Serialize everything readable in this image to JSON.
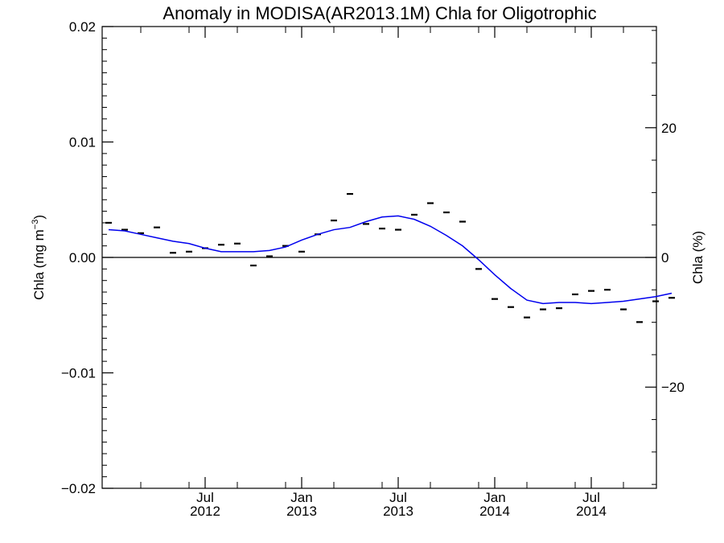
{
  "chart_data": {
    "type": "line",
    "title": "Anomaly in MODISA(AR2013.1M) Chla for Oligotrophic",
    "ylabel_left_base": "Chla (mg m",
    "ylabel_left_sup": "−3",
    "ylabel_left_close": ")",
    "ylabel_right": "Chla (%)",
    "xlim": [
      "2012-01",
      "2014-12"
    ],
    "ylim": [
      -0.02,
      0.02
    ],
    "y2lim": [
      -35.6,
      35.6
    ],
    "grid": false,
    "colors": {
      "axes": "#000000",
      "markers": "#000000",
      "smoothed_line": "#0000ee",
      "zero_line": "#000000"
    },
    "x_ticks": [
      {
        "month": "2012-07",
        "top": "Jul",
        "bottom": "2012"
      },
      {
        "month": "2013-01",
        "top": "Jan",
        "bottom": "2013"
      },
      {
        "month": "2013-07",
        "top": "Jul",
        "bottom": "2013"
      },
      {
        "month": "2014-01",
        "top": "Jan",
        "bottom": "2014"
      },
      {
        "month": "2014-07",
        "top": "Jul",
        "bottom": "2014"
      }
    ],
    "y_ticks_left": [
      {
        "value": 0.02,
        "label": "0.02"
      },
      {
        "value": 0.01,
        "label": "0.01"
      },
      {
        "value": 0.0,
        "label": "0.00"
      },
      {
        "value": -0.01,
        "label": "−0.01"
      },
      {
        "value": -0.02,
        "label": "−0.02"
      }
    ],
    "y_ticks_right": [
      {
        "value": 20,
        "label": "20"
      },
      {
        "value": 0,
        "label": "0"
      },
      {
        "value": -20,
        "label": "−20"
      }
    ],
    "series": [
      {
        "style": "marker",
        "points": [
          {
            "x": "2012-01",
            "y": 0.003
          },
          {
            "x": "2012-02",
            "y": 0.0024
          },
          {
            "x": "2012-03",
            "y": 0.0021
          },
          {
            "x": "2012-04",
            "y": 0.0026
          },
          {
            "x": "2012-05",
            "y": 0.0004
          },
          {
            "x": "2012-06",
            "y": 0.0005
          },
          {
            "x": "2012-07",
            "y": 0.0008
          },
          {
            "x": "2012-08",
            "y": 0.0011
          },
          {
            "x": "2012-09",
            "y": 0.0012
          },
          {
            "x": "2012-10",
            "y": -0.0007
          },
          {
            "x": "2012-11",
            "y": 0.0001
          },
          {
            "x": "2012-12",
            "y": 0.001
          },
          {
            "x": "2013-01",
            "y": 0.0005
          },
          {
            "x": "2013-02",
            "y": 0.002
          },
          {
            "x": "2013-03",
            "y": 0.0032
          },
          {
            "x": "2013-04",
            "y": 0.0055
          },
          {
            "x": "2013-05",
            "y": 0.0029
          },
          {
            "x": "2013-06",
            "y": 0.0025
          },
          {
            "x": "2013-07",
            "y": 0.0024
          },
          {
            "x": "2013-08",
            "y": 0.0037
          },
          {
            "x": "2013-09",
            "y": 0.0047
          },
          {
            "x": "2013-10",
            "y": 0.0039
          },
          {
            "x": "2013-11",
            "y": 0.0031
          },
          {
            "x": "2013-12",
            "y": -0.001
          },
          {
            "x": "2014-01",
            "y": -0.0036
          },
          {
            "x": "2014-02",
            "y": -0.0043
          },
          {
            "x": "2014-03",
            "y": -0.0052
          },
          {
            "x": "2014-04",
            "y": -0.0045
          },
          {
            "x": "2014-05",
            "y": -0.0044
          },
          {
            "x": "2014-06",
            "y": -0.0032
          },
          {
            "x": "2014-07",
            "y": -0.0029
          },
          {
            "x": "2014-08",
            "y": -0.0028
          },
          {
            "x": "2014-09",
            "y": -0.0045
          },
          {
            "x": "2014-10",
            "y": -0.0056
          },
          {
            "x": "2014-11",
            "y": -0.0038
          },
          {
            "x": "2014-12",
            "y": -0.0035
          }
        ]
      },
      {
        "style": "line",
        "points": [
          {
            "x": "2012-01",
            "y": 0.0024
          },
          {
            "x": "2012-02",
            "y": 0.0023
          },
          {
            "x": "2012-03",
            "y": 0.002
          },
          {
            "x": "2012-04",
            "y": 0.0017
          },
          {
            "x": "2012-05",
            "y": 0.0014
          },
          {
            "x": "2012-06",
            "y": 0.0012
          },
          {
            "x": "2012-07",
            "y": 0.0008
          },
          {
            "x": "2012-08",
            "y": 0.0005
          },
          {
            "x": "2012-09",
            "y": 0.0005
          },
          {
            "x": "2012-10",
            "y": 0.0005
          },
          {
            "x": "2012-11",
            "y": 0.0006
          },
          {
            "x": "2012-12",
            "y": 0.0009
          },
          {
            "x": "2013-01",
            "y": 0.0015
          },
          {
            "x": "2013-02",
            "y": 0.002
          },
          {
            "x": "2013-03",
            "y": 0.0024
          },
          {
            "x": "2013-04",
            "y": 0.0026
          },
          {
            "x": "2013-05",
            "y": 0.0031
          },
          {
            "x": "2013-06",
            "y": 0.0035
          },
          {
            "x": "2013-07",
            "y": 0.0036
          },
          {
            "x": "2013-08",
            "y": 0.0033
          },
          {
            "x": "2013-09",
            "y": 0.0027
          },
          {
            "x": "2013-10",
            "y": 0.0019
          },
          {
            "x": "2013-11",
            "y": 0.001
          },
          {
            "x": "2013-12",
            "y": -0.0002
          },
          {
            "x": "2014-01",
            "y": -0.0015
          },
          {
            "x": "2014-02",
            "y": -0.0027
          },
          {
            "x": "2014-03",
            "y": -0.0037
          },
          {
            "x": "2014-04",
            "y": -0.004
          },
          {
            "x": "2014-05",
            "y": -0.0039
          },
          {
            "x": "2014-06",
            "y": -0.0039
          },
          {
            "x": "2014-07",
            "y": -0.004
          },
          {
            "x": "2014-08",
            "y": -0.0039
          },
          {
            "x": "2014-09",
            "y": -0.0038
          },
          {
            "x": "2014-10",
            "y": -0.0036
          },
          {
            "x": "2014-11",
            "y": -0.0034
          },
          {
            "x": "2014-12",
            "y": -0.0031
          }
        ]
      }
    ]
  }
}
